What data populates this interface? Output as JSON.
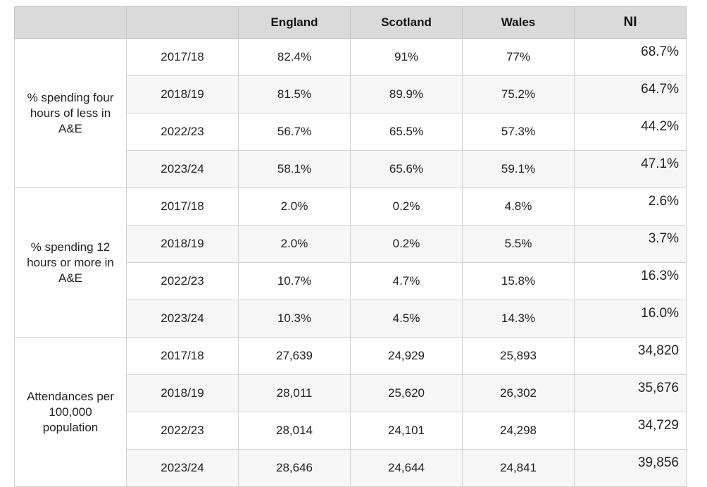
{
  "header": {
    "blank1": "",
    "blank2": "",
    "england": "England",
    "scotland": "Scotland",
    "wales": "Wales",
    "ni": "NI"
  },
  "groups": [
    {
      "metric": "% spending four hours of less in A&E",
      "rows": [
        {
          "year": "2017/18",
          "england": "82.4%",
          "scotland": "91%",
          "wales": "77%",
          "ni": "68.7%"
        },
        {
          "year": "2018/19",
          "england": "81.5%",
          "scotland": "89.9%",
          "wales": "75.2%",
          "ni": "64.7%"
        },
        {
          "year": "2022/23",
          "england": "56.7%",
          "scotland": "65.5%",
          "wales": "57.3%",
          "ni": "44.2%"
        },
        {
          "year": "2023/24",
          "england": "58.1%",
          "scotland": "65.6%",
          "wales": "59.1%",
          "ni": "47.1%"
        }
      ]
    },
    {
      "metric": "% spending 12 hours or more in A&E",
      "rows": [
        {
          "year": "2017/18",
          "england": "2.0%",
          "scotland": "0.2%",
          "wales": "4.8%",
          "ni": "2.6%"
        },
        {
          "year": "2018/19",
          "england": "2.0%",
          "scotland": "0.2%",
          "wales": "5.5%",
          "ni": "3.7%"
        },
        {
          "year": "2022/23",
          "england": "10.7%",
          "scotland": "4.7%",
          "wales": "15.8%",
          "ni": "16.3%"
        },
        {
          "year": "2023/24",
          "england": "10.3%",
          "scotland": "4.5%",
          "wales": "14.3%",
          "ni": "16.0%"
        }
      ]
    },
    {
      "metric": "Attendances per 100,000 population",
      "rows": [
        {
          "year": "2017/18",
          "england": "27,639",
          "scotland": "24,929",
          "wales": "25,893",
          "ni": "34,820"
        },
        {
          "year": "2018/19",
          "england": "28,011",
          "scotland": "25,620",
          "wales": "26,302",
          "ni": "35,676"
        },
        {
          "year": "2022/23",
          "england": "28,014",
          "scotland": "24,101",
          "wales": "24,298",
          "ni": "34,729"
        },
        {
          "year": "2023/24",
          "england": "28,646",
          "scotland": "24,644",
          "wales": "24,841",
          "ni": "39,856"
        }
      ]
    }
  ]
}
